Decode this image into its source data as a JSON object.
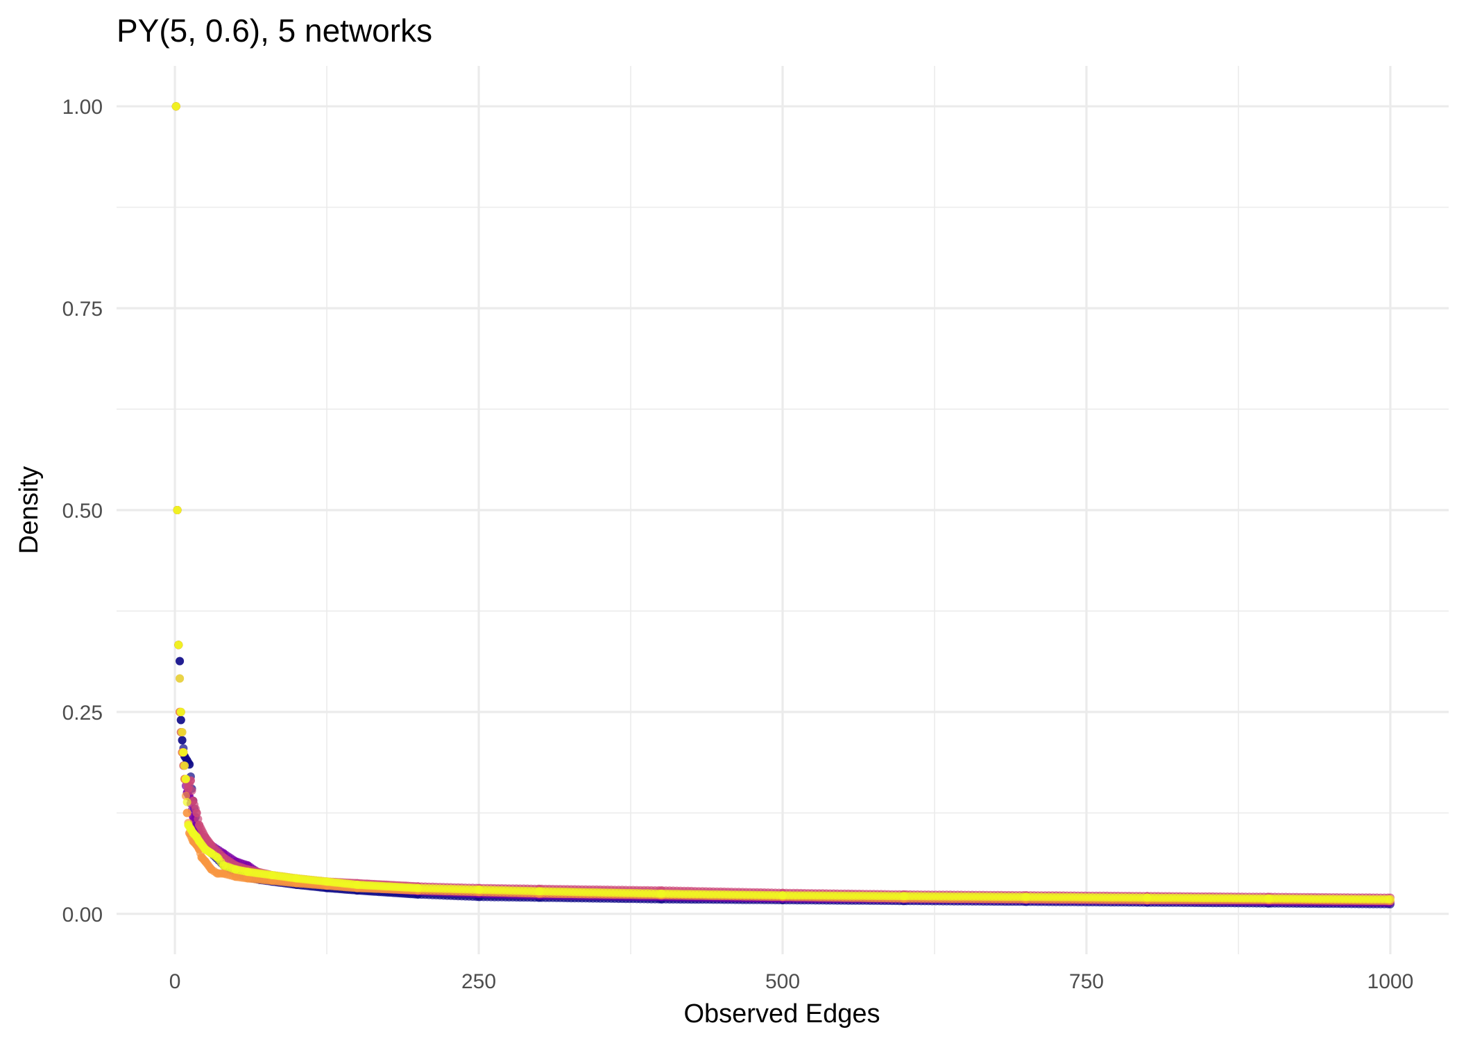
{
  "chart_data": {
    "type": "scatter",
    "title": "PY(5, 0.6), 5 networks",
    "xlabel": "Observed Edges",
    "ylabel": "Density",
    "xlim": [
      -48,
      1048
    ],
    "ylim": [
      -0.05,
      1.05
    ],
    "x_ticks": [
      0,
      250,
      500,
      750,
      1000
    ],
    "x_tick_labels": [
      "0",
      "250",
      "500",
      "750",
      "1000"
    ],
    "y_ticks": [
      0,
      0.25,
      0.5,
      0.75,
      1.0
    ],
    "y_tick_labels": [
      "0.00",
      "0.25",
      "0.50",
      "0.75",
      "1.00"
    ],
    "grid": true,
    "legend": "none",
    "series": [
      {
        "color": "#0d0887",
        "x": [
          1,
          2,
          3,
          4,
          5,
          6,
          8,
          10,
          12,
          15,
          18,
          20,
          25,
          30,
          40,
          50,
          60,
          70,
          80,
          100,
          125,
          150,
          200,
          250,
          300,
          400,
          500,
          600,
          700,
          800,
          900,
          1000
        ],
        "y": [
          1.0,
          0.5,
          0.333,
          0.313,
          0.24,
          0.215,
          0.195,
          0.19,
          0.185,
          0.14,
          0.11,
          0.1,
          0.09,
          0.075,
          0.06,
          0.05,
          0.045,
          0.042,
          0.04,
          0.036,
          0.032,
          0.029,
          0.024,
          0.021,
          0.02,
          0.018,
          0.017,
          0.016,
          0.015,
          0.014,
          0.013,
          0.012
        ]
      },
      {
        "color": "#7e03a8",
        "x": [
          1,
          2,
          3,
          4,
          6,
          8,
          10,
          12,
          15,
          20,
          25,
          30,
          40,
          50,
          60,
          70,
          80,
          100,
          125,
          150,
          200,
          250,
          300,
          400,
          500,
          600,
          700,
          800,
          900,
          1000
        ],
        "y": [
          1.0,
          0.5,
          0.333,
          0.25,
          0.2,
          0.167,
          0.15,
          0.145,
          0.12,
          0.1,
          0.09,
          0.085,
          0.075,
          0.065,
          0.06,
          0.05,
          0.045,
          0.04,
          0.036,
          0.033,
          0.028,
          0.025,
          0.023,
          0.021,
          0.019,
          0.018,
          0.017,
          0.016,
          0.015,
          0.014
        ]
      },
      {
        "color": "#cc4778",
        "x": [
          1,
          2,
          3,
          5,
          7,
          9,
          11,
          13,
          15,
          18,
          20,
          25,
          30,
          40,
          50,
          60,
          80,
          100,
          125,
          150,
          200,
          250,
          300,
          400,
          500,
          600,
          700,
          800,
          900,
          1000
        ],
        "y": [
          1.0,
          0.5,
          0.333,
          0.25,
          0.2,
          0.167,
          0.155,
          0.165,
          0.14,
          0.125,
          0.11,
          0.095,
          0.085,
          0.07,
          0.06,
          0.055,
          0.048,
          0.044,
          0.04,
          0.038,
          0.034,
          0.032,
          0.031,
          0.029,
          0.026,
          0.024,
          0.023,
          0.022,
          0.021,
          0.02
        ]
      },
      {
        "color": "#f89540",
        "x": [
          1,
          2,
          3,
          4,
          6,
          8,
          10,
          12,
          15,
          18,
          20,
          22,
          25,
          30,
          35,
          40,
          50,
          60,
          80,
          100,
          125,
          150,
          200,
          250,
          300,
          400,
          500,
          600,
          700,
          800,
          900,
          1000
        ],
        "y": [
          1.0,
          0.5,
          0.333,
          0.25,
          0.2,
          0.167,
          0.125,
          0.1,
          0.09,
          0.085,
          0.08,
          0.07,
          0.065,
          0.055,
          0.05,
          0.05,
          0.046,
          0.044,
          0.041,
          0.038,
          0.035,
          0.032,
          0.029,
          0.027,
          0.025,
          0.023,
          0.021,
          0.019,
          0.018,
          0.017,
          0.017,
          0.016
        ]
      },
      {
        "color": "#f0f921",
        "x": [
          1,
          2,
          3,
          5,
          7,
          9,
          11,
          13,
          15,
          18,
          20,
          25,
          30,
          35,
          40,
          50,
          60,
          80,
          100,
          125,
          150,
          200,
          250,
          300,
          400,
          500,
          600,
          700,
          800,
          900,
          1000
        ],
        "y": [
          1.0,
          0.5,
          0.333,
          0.25,
          0.2,
          0.167,
          0.11,
          0.105,
          0.1,
          0.095,
          0.09,
          0.08,
          0.075,
          0.07,
          0.06,
          0.055,
          0.052,
          0.048,
          0.044,
          0.04,
          0.036,
          0.032,
          0.03,
          0.028,
          0.025,
          0.023,
          0.022,
          0.021,
          0.02,
          0.019,
          0.018
        ]
      }
    ]
  }
}
